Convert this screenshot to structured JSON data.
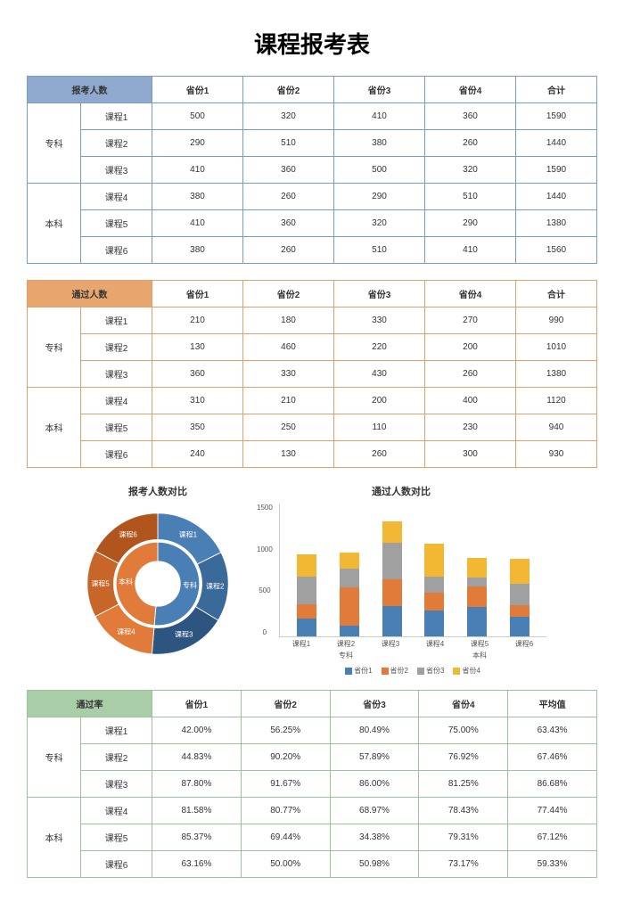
{
  "title": "课程报考表",
  "colors": {
    "blue": "#4a7fb5",
    "orange": "#e07b3a",
    "gray": "#a0a0a0",
    "yellow": "#f2b733"
  },
  "table1": {
    "header_label": "报考人数",
    "cols": [
      "省份1",
      "省份2",
      "省份3",
      "省份4",
      "合计"
    ],
    "groups": [
      {
        "cat": "专科",
        "rows": [
          {
            "label": "课程1",
            "vals": [
              "500",
              "320",
              "410",
              "360",
              "1590"
            ]
          },
          {
            "label": "课程2",
            "vals": [
              "290",
              "510",
              "380",
              "260",
              "1440"
            ]
          },
          {
            "label": "课程3",
            "vals": [
              "410",
              "360",
              "500",
              "320",
              "1590"
            ]
          }
        ]
      },
      {
        "cat": "本科",
        "rows": [
          {
            "label": "课程4",
            "vals": [
              "380",
              "260",
              "290",
              "510",
              "1440"
            ]
          },
          {
            "label": "课程5",
            "vals": [
              "410",
              "360",
              "320",
              "290",
              "1380"
            ]
          },
          {
            "label": "课程6",
            "vals": [
              "380",
              "260",
              "510",
              "410",
              "1560"
            ]
          }
        ]
      }
    ]
  },
  "table2": {
    "header_label": "通过人数",
    "cols": [
      "省份1",
      "省份2",
      "省份3",
      "省份4",
      "合计"
    ],
    "groups": [
      {
        "cat": "专科",
        "rows": [
          {
            "label": "课程1",
            "vals": [
              "210",
              "180",
              "330",
              "270",
              "990"
            ]
          },
          {
            "label": "课程2",
            "vals": [
              "130",
              "460",
              "220",
              "200",
              "1010"
            ]
          },
          {
            "label": "课程3",
            "vals": [
              "360",
              "330",
              "430",
              "260",
              "1380"
            ]
          }
        ]
      },
      {
        "cat": "本科",
        "rows": [
          {
            "label": "课程4",
            "vals": [
              "310",
              "210",
              "200",
              "400",
              "1120"
            ]
          },
          {
            "label": "课程5",
            "vals": [
              "350",
              "250",
              "110",
              "230",
              "940"
            ]
          },
          {
            "label": "课程6",
            "vals": [
              "240",
              "130",
              "260",
              "300",
              "930"
            ]
          }
        ]
      }
    ]
  },
  "table3": {
    "header_label": "通过率",
    "cols": [
      "省份1",
      "省份2",
      "省份3",
      "省份4",
      "平均值"
    ],
    "groups": [
      {
        "cat": "专科",
        "rows": [
          {
            "label": "课程1",
            "vals": [
              "42.00%",
              "56.25%",
              "80.49%",
              "75.00%",
              "63.43%"
            ]
          },
          {
            "label": "课程2",
            "vals": [
              "44.83%",
              "90.20%",
              "57.89%",
              "76.92%",
              "67.46%"
            ]
          },
          {
            "label": "课程3",
            "vals": [
              "87.80%",
              "91.67%",
              "86.00%",
              "81.25%",
              "86.68%"
            ]
          }
        ]
      },
      {
        "cat": "本科",
        "rows": [
          {
            "label": "课程4",
            "vals": [
              "81.58%",
              "80.77%",
              "68.97%",
              "78.43%",
              "77.44%"
            ]
          },
          {
            "label": "课程5",
            "vals": [
              "85.37%",
              "69.44%",
              "34.38%",
              "79.31%",
              "67.12%"
            ]
          },
          {
            "label": "课程6",
            "vals": [
              "63.16%",
              "50.00%",
              "50.98%",
              "73.17%",
              "59.33%"
            ]
          }
        ]
      }
    ]
  },
  "donut": {
    "title": "报考人数对比",
    "inner_labels": [
      "专科",
      "本科"
    ],
    "outer_labels": [
      "课程1",
      "课程2",
      "课程3",
      "课程4",
      "课程5",
      "课程6"
    ],
    "inner": [
      {
        "label": "专科",
        "value": 4620,
        "color": "#4a7fb5"
      },
      {
        "label": "本科",
        "value": 4380,
        "color": "#e07b3a"
      }
    ],
    "outer": [
      {
        "label": "课程1",
        "value": 1590,
        "color": "#4a7fb5"
      },
      {
        "label": "课程2",
        "value": 1440,
        "color": "#3a6a9a"
      },
      {
        "label": "课程3",
        "value": 1590,
        "color": "#2d5580"
      },
      {
        "label": "课程4",
        "value": 1440,
        "color": "#e07b3a"
      },
      {
        "label": "课程5",
        "value": 1380,
        "color": "#c76628"
      },
      {
        "label": "课程6",
        "value": 1560,
        "color": "#b0551c"
      }
    ]
  },
  "bar": {
    "title": "通过人数对比",
    "ymax": 1500,
    "yticks": [
      "1500",
      "1000",
      "500",
      "0"
    ],
    "group_labels": [
      "专科",
      "本科"
    ],
    "legend": [
      "省份1",
      "省份2",
      "省份3",
      "省份4"
    ],
    "legend_colors": [
      "#4a7fb5",
      "#e07b3a",
      "#a0a0a0",
      "#f2b733"
    ],
    "bars": [
      {
        "x": "课程1",
        "segs": [
          210,
          180,
          330,
          270
        ]
      },
      {
        "x": "课程2",
        "segs": [
          130,
          460,
          220,
          200
        ]
      },
      {
        "x": "课程3",
        "segs": [
          360,
          330,
          430,
          260
        ]
      },
      {
        "x": "课程4",
        "segs": [
          310,
          210,
          200,
          400
        ]
      },
      {
        "x": "课程5",
        "segs": [
          350,
          250,
          110,
          230
        ]
      },
      {
        "x": "课程6",
        "segs": [
          240,
          130,
          260,
          300
        ]
      }
    ]
  }
}
